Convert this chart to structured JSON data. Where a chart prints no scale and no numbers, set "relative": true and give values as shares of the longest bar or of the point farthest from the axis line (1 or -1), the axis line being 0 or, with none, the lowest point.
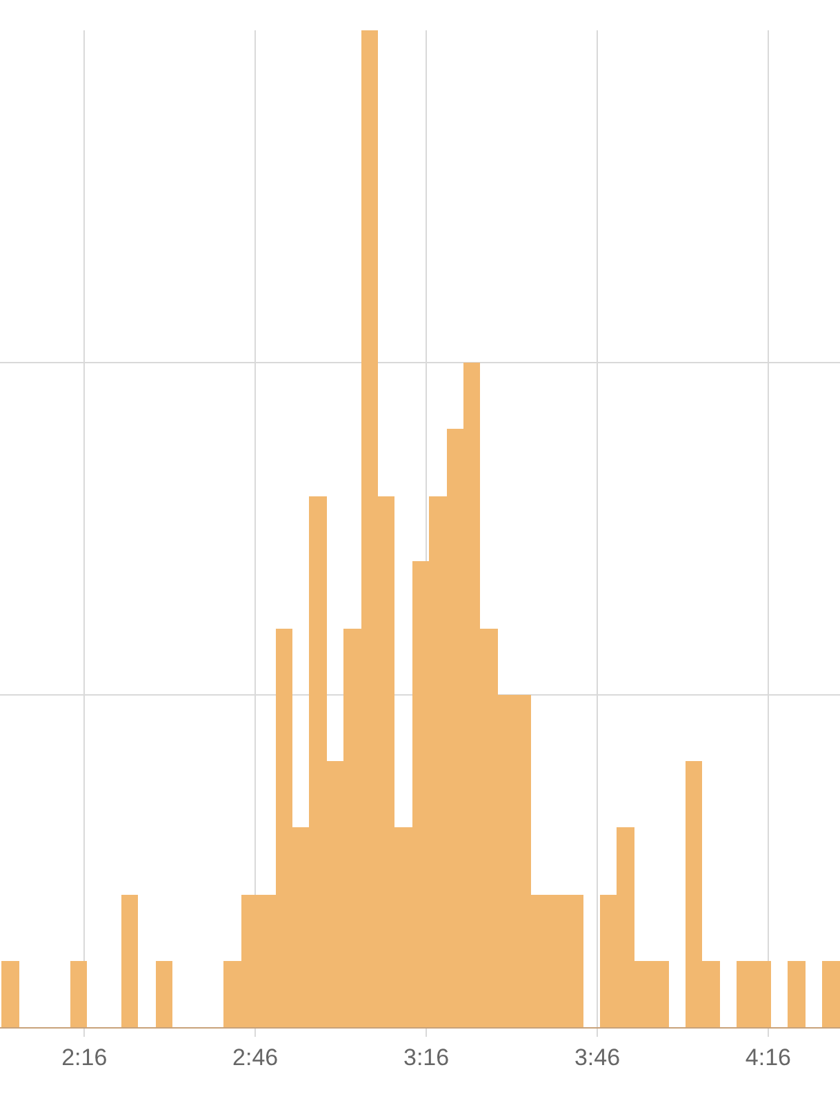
{
  "chart_data": {
    "type": "bar",
    "relative": true,
    "color": "#f2b870",
    "grid": true,
    "x": [
      123,
      135,
      144,
      150,
      162,
      165,
      168,
      171,
      174,
      177,
      180,
      183,
      186,
      189,
      192,
      195,
      198,
      201,
      204,
      207,
      210,
      213,
      216,
      219,
      222,
      228,
      231,
      234,
      237,
      243,
      246,
      252,
      255,
      261,
      267
    ],
    "values": [
      0.067,
      0.067,
      0.133,
      0.067,
      0.067,
      0.133,
      0.133,
      0.4,
      0.2,
      0.533,
      0.267,
      0.4,
      1,
      0.533,
      0.2,
      0.467,
      0.533,
      0.6,
      0.667,
      0.4,
      0.333,
      0.333,
      0.133,
      0.133,
      0.133,
      0.133,
      0.2,
      0.067,
      0.067,
      0.267,
      0.067,
      0.067,
      0.067,
      0.067,
      0.067
    ],
    "xlim": [
      121.2,
      268.6
    ],
    "xticks": [
      {
        "value": 136,
        "label": "2:16"
      },
      {
        "value": 166,
        "label": "2:46"
      },
      {
        "value": 196,
        "label": "3:16"
      },
      {
        "value": 226,
        "label": "3:46"
      },
      {
        "value": 256,
        "label": "4:16"
      }
    ]
  }
}
